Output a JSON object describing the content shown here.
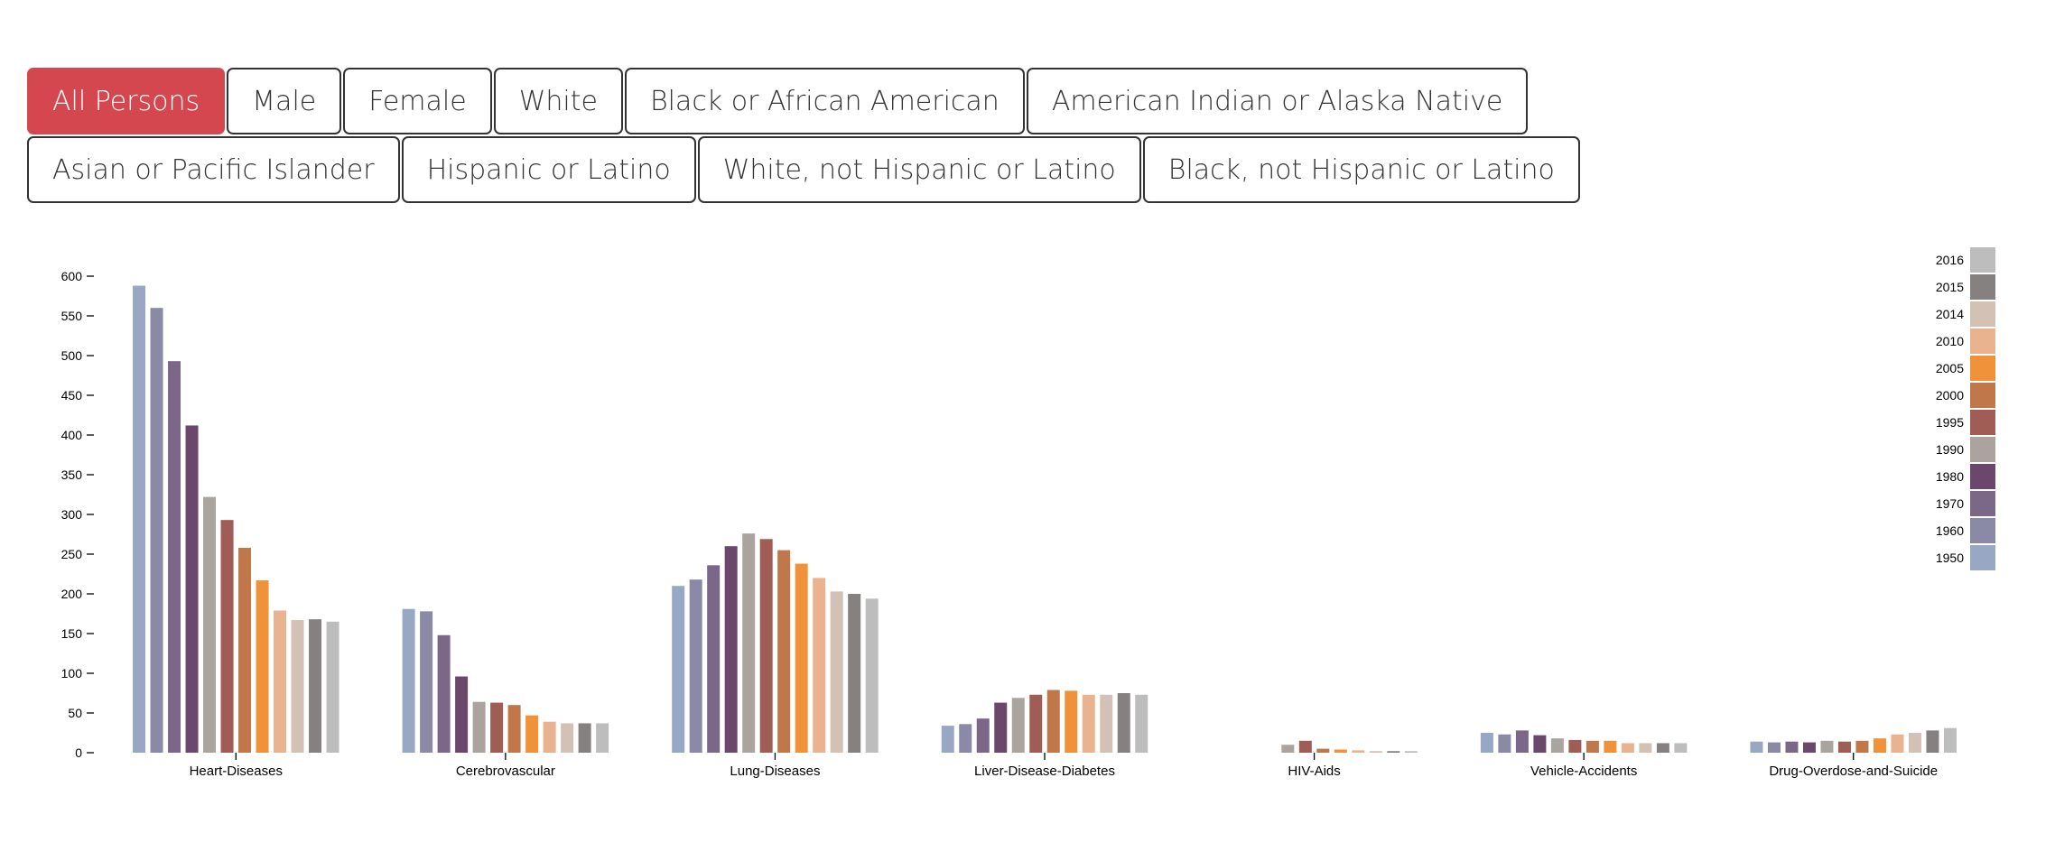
{
  "filters": {
    "row1": [
      {
        "label": "All Persons",
        "active": true
      },
      {
        "label": "Male",
        "active": false
      },
      {
        "label": "Female",
        "active": false
      },
      {
        "label": "White",
        "active": false
      },
      {
        "label": "Black or African American",
        "active": false
      },
      {
        "label": "American Indian or Alaska Native",
        "active": false
      }
    ],
    "row2": [
      {
        "label": "Asian or Pacific Islander",
        "active": false
      },
      {
        "label": "Hispanic or Latino",
        "active": false
      },
      {
        "label": "White, not Hispanic or Latino",
        "active": false
      },
      {
        "label": "Black, not Hispanic or Latino",
        "active": false
      }
    ]
  },
  "chart_data": {
    "type": "bar",
    "title": "",
    "xlabel": "",
    "ylabel": "",
    "ylim": [
      0,
      600
    ],
    "yticks": [
      0,
      50,
      100,
      150,
      200,
      250,
      300,
      350,
      400,
      450,
      500,
      550,
      600
    ],
    "categories": [
      "Heart-Diseases",
      "Cerebrovascular",
      "Lung-Diseases",
      "Liver-Disease-Diabetes",
      "HIV-Aids",
      "Vehicle-Accidents",
      "Drug-Overdose-and-Suicide"
    ],
    "legend_position": "top-right",
    "grid": false,
    "series": [
      {
        "name": "1950",
        "color": "#98a7c4",
        "values": [
          588,
          181,
          210,
          34,
          0,
          25,
          14
        ]
      },
      {
        "name": "1960",
        "color": "#8a89a6",
        "values": [
          560,
          178,
          218,
          36,
          0,
          23,
          13
        ]
      },
      {
        "name": "1970",
        "color": "#7b6888",
        "values": [
          493,
          148,
          236,
          43,
          0,
          28,
          14
        ]
      },
      {
        "name": "1980",
        "color": "#6b486b",
        "values": [
          412,
          96,
          260,
          63,
          0,
          22,
          13
        ]
      },
      {
        "name": "1990",
        "color": "#aba39e",
        "values": [
          322,
          64,
          276,
          69,
          10,
          18,
          15
        ]
      },
      {
        "name": "1995",
        "color": "#a05d56",
        "values": [
          293,
          63,
          269,
          73,
          15,
          16,
          14
        ]
      },
      {
        "name": "2000",
        "color": "#c0784b",
        "values": [
          258,
          60,
          255,
          79,
          5,
          15,
          15
        ]
      },
      {
        "name": "2005",
        "color": "#f0923a",
        "values": [
          217,
          47,
          238,
          78,
          4,
          15,
          18
        ]
      },
      {
        "name": "2010",
        "color": "#e8b38e",
        "values": [
          179,
          39,
          220,
          73,
          3,
          12,
          23
        ]
      },
      {
        "name": "2014",
        "color": "#d2c1b4",
        "values": [
          167,
          37,
          203,
          73,
          2,
          12,
          25
        ]
      },
      {
        "name": "2015",
        "color": "#858180",
        "values": [
          168,
          37,
          200,
          75,
          2,
          12,
          28
        ]
      },
      {
        "name": "2016",
        "color": "#bdbdbd",
        "values": [
          165,
          37,
          194,
          73,
          2,
          12,
          31
        ]
      }
    ]
  }
}
